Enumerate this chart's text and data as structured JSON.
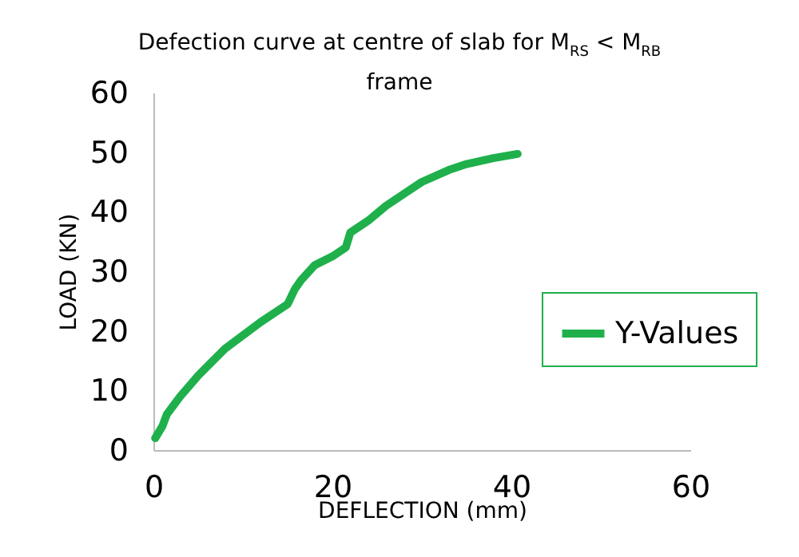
{
  "chart_data": {
    "type": "line",
    "title": "Defection curve at centre of slab for M$_{RS}$ < M$_{RB}$ frame",
    "xlabel": "DEFLECTION (mm)",
    "ylabel": "LOAD (KN)",
    "x": [
      0.2,
      1,
      1.5,
      3,
      5,
      8,
      12,
      15,
      15.8,
      16.5,
      18,
      20,
      21.5,
      22,
      24,
      26,
      28,
      30,
      33,
      35,
      38,
      40.7
    ],
    "series": [
      {
        "name": "Y-Values",
        "color": "#1fb04c",
        "values": [
          2,
          4,
          6,
          9,
          12.5,
          17,
          21.5,
          24.5,
          27,
          28.5,
          31,
          32.5,
          34,
          36.5,
          38.5,
          41,
          43,
          45,
          47,
          48,
          49,
          49.7
        ]
      }
    ],
    "xlim": [
      0,
      60
    ],
    "xticks": [
      0,
      20,
      40,
      60
    ],
    "ylim": [
      0,
      60
    ],
    "yticks": [
      0,
      10,
      20,
      30,
      40,
      50,
      60
    ],
    "grid": false,
    "legend": "right",
    "marker": "none",
    "line_style": "solid"
  }
}
